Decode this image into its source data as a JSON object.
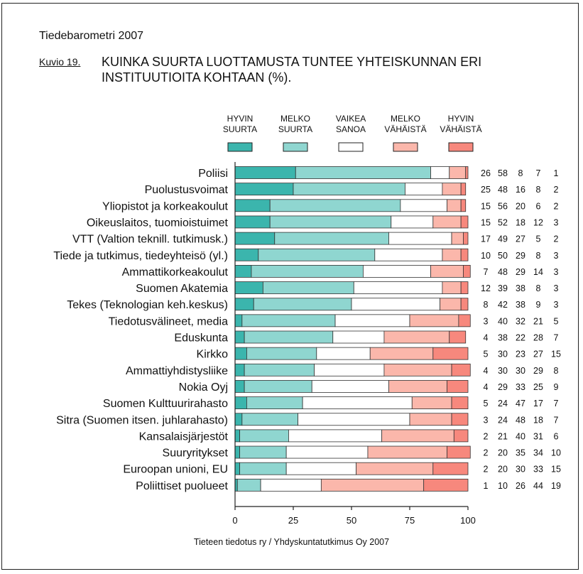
{
  "supertitle": "Tiedebarometri 2007",
  "figure_label": "Kuvio 19.",
  "title": "KUINKA SUURTA LUOTTAMUSTA TUNTEE YHTEISKUNNAN ERI INSTITUUTIOITA KOHTAAN (%).",
  "source": "Tieteen tiedotus ry / Yhdyskuntatutkimus Oy 2007",
  "colors": [
    "#3bb5ad",
    "#8fd6d0",
    "#ffffff",
    "#fbb7ab",
    "#f7887d"
  ],
  "chart_data": {
    "type": "bar",
    "orientation": "horizontal",
    "stacked": true,
    "xlim": [
      0,
      100
    ],
    "xticks": [
      0,
      25,
      50,
      75,
      100
    ],
    "legend_position": "top",
    "series": [
      {
        "name": "HYVIN SUURTA",
        "name_lines": [
          "HYVIN",
          "SUURTA"
        ],
        "values": [
          26,
          25,
          15,
          15,
          17,
          10,
          7,
          12,
          8,
          3,
          4,
          5,
          4,
          4,
          5,
          3,
          2,
          2,
          2,
          1
        ]
      },
      {
        "name": "MELKO SUURTA",
        "name_lines": [
          "MELKO",
          "SUURTA"
        ],
        "values": [
          58,
          48,
          56,
          52,
          49,
          50,
          48,
          39,
          42,
          40,
          38,
          30,
          30,
          29,
          24,
          24,
          21,
          20,
          20,
          10
        ]
      },
      {
        "name": "VAIKEA SANOA",
        "name_lines": [
          "VAIKEA",
          "SANOA"
        ],
        "values": [
          8,
          16,
          20,
          18,
          27,
          29,
          29,
          38,
          38,
          32,
          22,
          23,
          30,
          33,
          47,
          48,
          40,
          35,
          30,
          26
        ]
      },
      {
        "name": "MELKO VÄHÄISTÄ",
        "name_lines": [
          "MELKO",
          "VÄHÄISTÄ"
        ],
        "values": [
          7,
          8,
          6,
          12,
          5,
          8,
          14,
          8,
          9,
          21,
          28,
          27,
          29,
          25,
          17,
          18,
          31,
          34,
          33,
          44
        ]
      },
      {
        "name": "HYVIN VÄHÄISTÄ",
        "name_lines": [
          "HYVIN",
          "VÄHÄISTÄ"
        ],
        "values": [
          1,
          2,
          2,
          3,
          2,
          3,
          3,
          3,
          3,
          5,
          7,
          15,
          8,
          9,
          7,
          7,
          6,
          10,
          15,
          19
        ]
      }
    ],
    "categories": [
      "Poliisi",
      "Puolustusvoimat",
      "Yliopistot ja korkeakoulut",
      "Oikeuslaitos, tuomioistuimet",
      "VTT (Valtion teknill. tutkimusk.)",
      "Tiede ja tutkimus, tiedeyhteisö (yl.)",
      "Ammattikorkeakoulut",
      "Suomen Akatemia",
      "Tekes (Teknologian keh.keskus)",
      "Tiedotusvälineet, media",
      "Eduskunta",
      "Kirkko",
      "Ammattiyhdistysliike",
      "Nokia Oyj",
      "Suomen Kulttuurirahasto",
      "Sitra (Suomen itsen. juhlarahasto)",
      "Kansalaisjärjestöt",
      "Suuryritykset",
      "Euroopan unioni, EU",
      "Poliittiset puolueet"
    ]
  }
}
